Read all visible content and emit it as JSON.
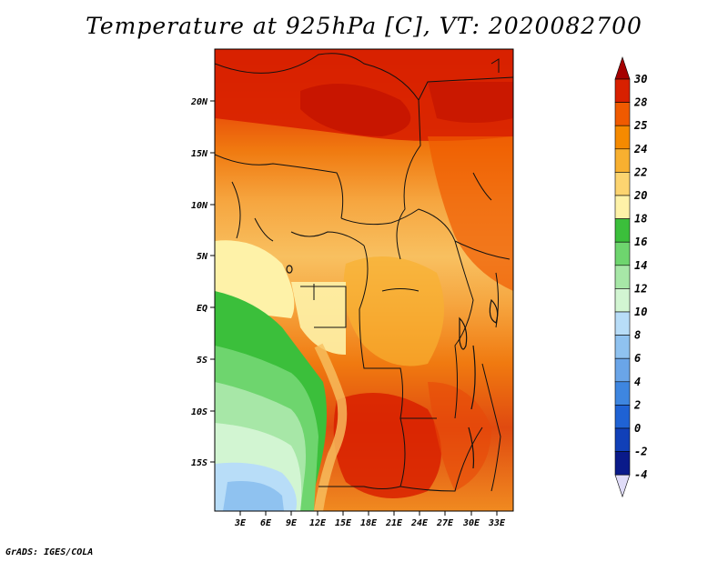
{
  "title": "Temperature at 925hPa [C], VT: 2020082700",
  "footer": "GrADS: IGES/COLA",
  "map": {
    "lon_labels": [
      "3E",
      "6E",
      "9E",
      "12E",
      "15E",
      "18E",
      "21E",
      "24E",
      "27E",
      "30E",
      "33E"
    ],
    "lat_labels": [
      "20N",
      "15N",
      "10N",
      "5N",
      "EQ",
      "5S",
      "10S",
      "15S"
    ]
  },
  "colorbar": {
    "labels": [
      "30",
      "28",
      "25",
      "24",
      "22",
      "20",
      "18",
      "16",
      "14",
      "12",
      "10",
      "8",
      "6",
      "4",
      "2",
      "0",
      "-2",
      "-4"
    ],
    "colors": [
      "#a50000",
      "#d82000",
      "#f05a00",
      "#f58a00",
      "#f8b030",
      "#fcd470",
      "#fef2a8",
      "#3bbf3b",
      "#6ed56e",
      "#a7e7a7",
      "#d2f5d2",
      "#b8ddf8",
      "#8fc2f0",
      "#6aa5e8",
      "#3e86e0",
      "#1f62d4",
      "#1140b8",
      "#0a1a8a",
      "#e0dcf8"
    ]
  }
}
